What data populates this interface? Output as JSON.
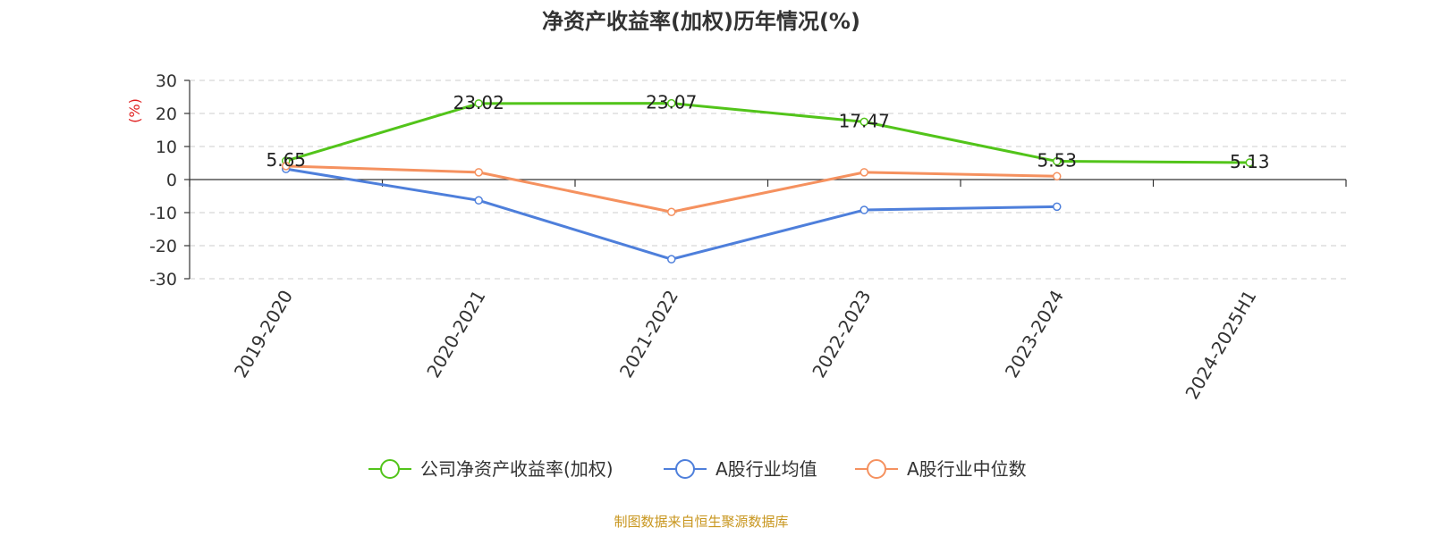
{
  "chart_data": {
    "type": "line",
    "title": "净资产收益率(加权)历年情况(%)",
    "ylabel": "(%)",
    "xlabel": "",
    "categories": [
      "2019-2020",
      "2020-2021",
      "2021-2022",
      "2022-2023",
      "2023-2024",
      "2024-2025H1"
    ],
    "ylim": [
      -30,
      30
    ],
    "yticks": [
      30,
      20,
      10,
      0,
      -10,
      -20,
      -30
    ],
    "grid": true,
    "legend_position": "bottom",
    "series": [
      {
        "name": "公司净资产收益率(加权)",
        "color": "#52c41a",
        "values": [
          5.65,
          23.02,
          23.07,
          17.47,
          5.53,
          5.13
        ],
        "labels": [
          "5.65",
          "23.02",
          "23.07",
          "17.47",
          "5.53",
          "5.13"
        ],
        "show_labels": true
      },
      {
        "name": "A股行业均值",
        "color": "#4e7fdb",
        "values": [
          3.2,
          -6.3,
          -24.1,
          -9.2,
          -8.2,
          null
        ],
        "show_labels": false
      },
      {
        "name": "A股行业中位数",
        "color": "#f5915f",
        "values": [
          4.1,
          2.2,
          -9.8,
          2.2,
          1.0,
          null
        ],
        "show_labels": false
      }
    ]
  },
  "colors": {
    "axis": "#333333",
    "grid": "#cccccc",
    "unit_label": "#e02020",
    "source": "#c8961e"
  },
  "source": "制图数据来自恒生聚源数据库"
}
